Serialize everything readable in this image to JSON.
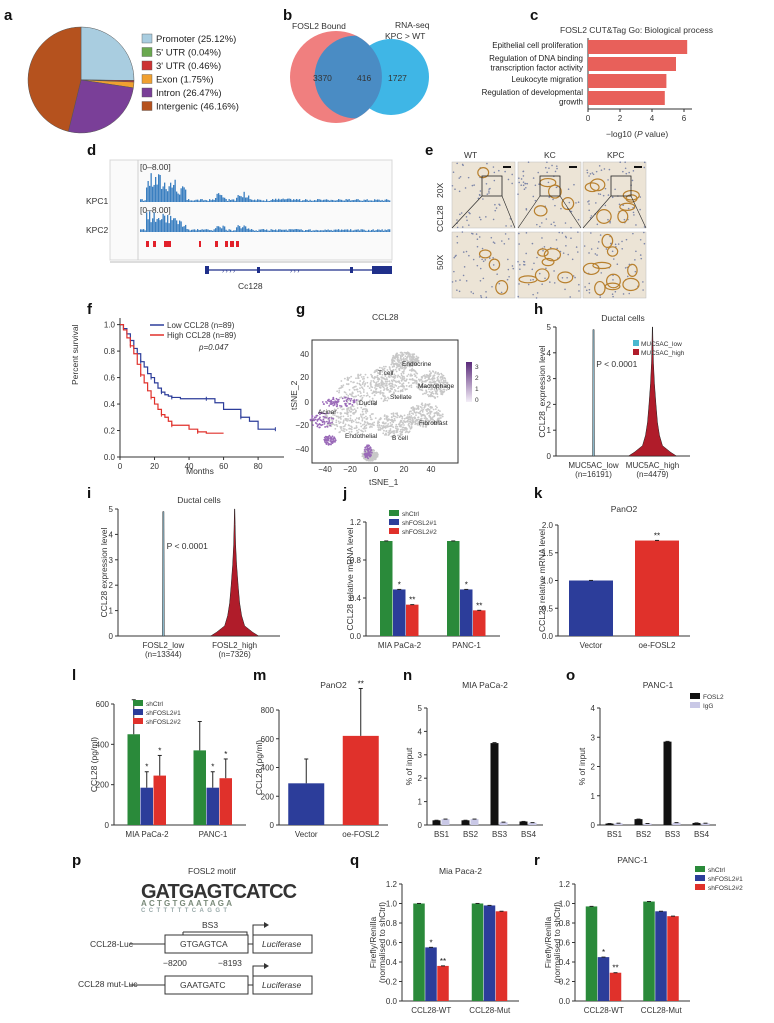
{
  "panel_letters": [
    "a",
    "b",
    "c",
    "d",
    "e",
    "f",
    "g",
    "h",
    "i",
    "j",
    "k",
    "l",
    "m",
    "n",
    "o",
    "p",
    "q",
    "r"
  ],
  "colors": {
    "green": "#2a8a3a",
    "blue": "#2c3d9a",
    "red": "#e0312b",
    "black": "#111111",
    "igg": "#c9c8e6",
    "venn_left": "#f07f7f",
    "venn_right": "#3fb6e6",
    "overlap": "#4a8cc4",
    "track": "#3a7fc0",
    "bed": "#e2202a",
    "violin": "#b01c2a"
  },
  "a": {
    "legend": [
      "Promoter (25.12%)",
      "5' UTR (0.04%)",
      "3' UTR (0.46%)",
      "Exon (1.75%)",
      "Intron (26.47%)",
      "Intergenic (46.16%)"
    ],
    "chart_data": {
      "type": "pie",
      "labels": [
        "Promoter",
        "5' UTR",
        "3' UTR",
        "Exon",
        "Intron",
        "Intergenic"
      ],
      "values": [
        25.12,
        0.04,
        0.46,
        1.75,
        26.47,
        46.16
      ],
      "colors": [
        "#a9cde0",
        "#6aa84f",
        "#cc3333",
        "#f0a030",
        "#7a3f98",
        "#b5521e"
      ]
    }
  },
  "b": {
    "left_label": "FOSL2 Bound",
    "right_label_1": "RNA-seq",
    "right_label_2": "KPC > WT",
    "left_only": "3370",
    "overlap": "416",
    "right_only": "1727"
  },
  "c": {
    "title": "FOSL2 CUT&Tag Go: Biological process",
    "xlabel_pre": "−log10 (",
    "xlabel_italic": "P",
    "xlabel_post": " value)",
    "chart_data": {
      "type": "bar",
      "categories": [
        "Epithelial cell proliferation",
        "Regulation of DNA binding transcription factor activity",
        "Leukocyte migration",
        "Regulation of developmental growth"
      ],
      "values": [
        6.2,
        5.5,
        4.9,
        4.8
      ],
      "xlim": [
        0,
        6.5
      ],
      "xticks": [
        "0",
        "2",
        "4",
        "6"
      ]
    }
  },
  "d": {
    "track1": "KPC1",
    "track2": "KPC2",
    "range1": "[0–8.00]",
    "range2": "[0–8.00]",
    "gene": "Cc128"
  },
  "e": {
    "cols": [
      "WT",
      "KC",
      "KPC"
    ],
    "row_label": "CCL28",
    "rows": [
      "20X",
      "50X"
    ]
  },
  "f": {
    "legend_low": "Low CCL28 (n=89)",
    "legend_high": "High CCL28 (n=89)",
    "pvalue": "p=0.047",
    "ylabel": "Percent survival",
    "xlabel": "Months",
    "chart_data": {
      "type": "line",
      "series": [
        {
          "name": "Low CCL28 (n=89)",
          "color": "#2c3d9a",
          "x": [
            0,
            2,
            4,
            6,
            8,
            10,
            12,
            14,
            16,
            18,
            20,
            22,
            24,
            26,
            28,
            30,
            35,
            40,
            50,
            55,
            60,
            70,
            75,
            80,
            90
          ],
          "y": [
            1.0,
            0.97,
            0.93,
            0.88,
            0.82,
            0.78,
            0.72,
            0.68,
            0.63,
            0.6,
            0.56,
            0.52,
            0.49,
            0.47,
            0.46,
            0.45,
            0.44,
            0.44,
            0.44,
            0.41,
            0.36,
            0.3,
            0.27,
            0.21,
            0.21
          ]
        },
        {
          "name": "High CCL28 (n=89)",
          "color": "#e0312b",
          "x": [
            0,
            2,
            4,
            6,
            8,
            10,
            12,
            14,
            16,
            18,
            20,
            22,
            24,
            26,
            28,
            30,
            35,
            40,
            45,
            50,
            60
          ],
          "y": [
            1.0,
            0.96,
            0.9,
            0.84,
            0.78,
            0.7,
            0.62,
            0.56,
            0.5,
            0.45,
            0.4,
            0.36,
            0.32,
            0.3,
            0.27,
            0.24,
            0.24,
            0.21,
            0.19,
            0.18,
            0.18
          ]
        }
      ],
      "xlim": [
        0,
        95
      ],
      "ylim": [
        0,
        1.05
      ],
      "xticks": [
        "0",
        "20",
        "40",
        "60",
        "80"
      ],
      "yticks": [
        "0.0",
        "0.2",
        "0.4",
        "0.6",
        "0.8",
        "1.0"
      ]
    }
  },
  "g": {
    "title": "CCL28",
    "xlabel": "tSNE_1",
    "ylabel": "tSNE_2",
    "xticks": [
      "−40",
      "−20",
      "0",
      "20",
      "40"
    ],
    "yticks": [
      "40",
      "20",
      "0",
      "−20",
      "−40"
    ],
    "cbar": [
      "3",
      "2",
      "1",
      "0"
    ],
    "clusters": [
      "Endocrine",
      "T cell",
      "Macrophage",
      "Stellate",
      "Ductal",
      "Acinar",
      "Fibroblast",
      "Endothelial",
      "B cell"
    ]
  },
  "h": {
    "title": "Ductal cells",
    "ylabel": "CCL28_expression level",
    "pvalue": "P < 0.0001",
    "legend": [
      "MUC5AC_low",
      "MUC5AC_high"
    ],
    "yticks": [
      "0",
      "1",
      "2",
      "3",
      "4",
      "5"
    ],
    "group1": "MUC5AC_low",
    "group1_n": "(n=16191)",
    "group2": "MUC5AC_high",
    "group2_n": "(n=4479)"
  },
  "i": {
    "title": "Ductal cells",
    "ylabel": "CCL28 expression level",
    "pvalue": "P < 0.0001",
    "yticks": [
      "0",
      "1",
      "2",
      "3",
      "4",
      "5"
    ],
    "group1": "FOSL2_low",
    "group1_n": "(n=13344)",
    "group2": "FOSL2_high",
    "group2_n": "(n=7326)"
  },
  "j": {
    "ylabel": "CCL28 relative mRNA level",
    "legend": [
      "shCtrl",
      "shFOSL2#1",
      "shFOSL2#2"
    ],
    "chart_data": {
      "type": "bar",
      "categories": [
        "MIA PaCa-2",
        "PANC-1"
      ],
      "series": [
        {
          "name": "shCtrl",
          "values": [
            1.0,
            1.0
          ]
        },
        {
          "name": "shFOSL2#1",
          "values": [
            0.49,
            0.49
          ]
        },
        {
          "name": "shFOSL2#2",
          "values": [
            0.33,
            0.27
          ]
        }
      ],
      "ylim": [
        0,
        1.2
      ],
      "yticks": [
        "0.0",
        "0.4",
        "0.8",
        "1.2"
      ],
      "sig": [
        "*",
        "**",
        "*",
        "**"
      ]
    }
  },
  "k": {
    "title": "PanO2",
    "ylabel": "CCL28 relative mRNA level",
    "chart_data": {
      "type": "bar",
      "categories": [
        "Vector",
        "oe-FOSL2"
      ],
      "values": [
        1.0,
        1.72
      ],
      "ylim": [
        0,
        2.0
      ],
      "yticks": [
        "0.0",
        "0.5",
        "1.0",
        "1.5",
        "2.0"
      ],
      "sig": [
        "**"
      ]
    }
  },
  "l": {
    "ylabel": "CCL28 (pg/ml)",
    "legend": [
      "shCtrl",
      "shFOSL2#1",
      "shFOSL2#2"
    ],
    "chart_data": {
      "type": "bar",
      "categories": [
        "MIA PaCa-2",
        "PANC-1"
      ],
      "series": [
        {
          "name": "shCtrl",
          "values": [
            450,
            370
          ]
        },
        {
          "name": "shFOSL2#1",
          "values": [
            185,
            185
          ]
        },
        {
          "name": "shFOSL2#2",
          "values": [
            245,
            232
          ]
        }
      ],
      "ylim": [
        0,
        600
      ],
      "yticks": [
        "0",
        "200",
        "400",
        "600"
      ],
      "sig": [
        "*",
        "*",
        "*",
        "*"
      ]
    }
  },
  "m": {
    "title": "PanO2",
    "ylabel": "CCL28 (pg/ml)",
    "chart_data": {
      "type": "bar",
      "categories": [
        "Vector",
        "oe-FOSL2"
      ],
      "values": [
        290,
        620
      ],
      "ylim": [
        0,
        800
      ],
      "yticks": [
        "0",
        "200",
        "400",
        "600",
        "800"
      ],
      "sig": [
        "**"
      ]
    }
  },
  "n": {
    "title": "MIA PaCa-2",
    "ylabel": "% of input",
    "chart_data": {
      "type": "bar",
      "categories": [
        "BS1",
        "BS2",
        "BS3",
        "BS4"
      ],
      "series": [
        {
          "name": "FOSL2",
          "values": [
            0.2,
            0.2,
            3.5,
            0.15
          ]
        },
        {
          "name": "IgG",
          "values": [
            0.25,
            0.25,
            0.12,
            0.1
          ]
        }
      ],
      "ylim": [
        0,
        5
      ],
      "yticks": [
        "0",
        "1",
        "2",
        "3",
        "4",
        "5"
      ]
    }
  },
  "o": {
    "title": "PANC-1",
    "ylabel": "% of input",
    "legend": [
      "FOSL2",
      "IgG"
    ],
    "chart_data": {
      "type": "bar",
      "categories": [
        "BS1",
        "BS2",
        "BS3",
        "BS4"
      ],
      "series": [
        {
          "name": "FOSL2",
          "values": [
            0.05,
            0.2,
            2.85,
            0.07
          ]
        },
        {
          "name": "IgG",
          "values": [
            0.06,
            0.05,
            0.08,
            0.06
          ]
        }
      ],
      "ylim": [
        0,
        4
      ],
      "yticks": [
        "0",
        "1",
        "2",
        "3",
        "4"
      ]
    }
  },
  "p": {
    "motif_title": "FOSL2 motif",
    "bs": "BS3",
    "wt_label": "CCL28-Luc",
    "wt_seq": "GTGAGTCA",
    "mut_label": "CCL28 mut-Luc",
    "mut_seq": "GAATGATC",
    "luc": "Luciferase",
    "pos1": "−8200",
    "pos2": "−8193",
    "logo_top": "GATGAGTCATCC",
    "logo_mid": "ACTGTGAATAGA",
    "logo_low": "CCTTTTTCAGGT"
  },
  "q": {
    "title": "Mia Paca-2",
    "ylabel": "Firefly/Renilla",
    "ylabel2": "(normalised to shCtrl)",
    "chart_data": {
      "type": "bar",
      "categories": [
        "CCL28-WT",
        "CCL28-Mut"
      ],
      "series": [
        {
          "name": "shCtrl",
          "values": [
            1.0,
            1.0
          ]
        },
        {
          "name": "shFOSL2#1",
          "values": [
            0.55,
            0.98
          ]
        },
        {
          "name": "shFOSL2#2",
          "values": [
            0.36,
            0.92
          ]
        }
      ],
      "ylim": [
        0,
        1.2
      ],
      "yticks": [
        "0.0",
        "0.2",
        "0.4",
        "0.6",
        "0.8",
        "1.0",
        "1.2"
      ],
      "sig": [
        "*",
        "**"
      ]
    }
  },
  "r": {
    "title": "PANC-1",
    "ylabel": "Firefly/Renilla",
    "ylabel2": "(normalised to shCtrl)",
    "legend": [
      "shCtrl",
      "shFOSL2#1",
      "shFOSL2#2"
    ],
    "chart_data": {
      "type": "bar",
      "categories": [
        "CCL28-WT",
        "CCL28-Mut"
      ],
      "series": [
        {
          "name": "shCtrl",
          "values": [
            0.97,
            1.02
          ]
        },
        {
          "name": "shFOSL2#1",
          "values": [
            0.45,
            0.92
          ]
        },
        {
          "name": "shFOSL2#2",
          "values": [
            0.29,
            0.87
          ]
        }
      ],
      "ylim": [
        0,
        1.2
      ],
      "yticks": [
        "0.0",
        "0.2",
        "0.4",
        "0.6",
        "0.8",
        "1.0",
        "1.2"
      ],
      "sig": [
        "*",
        "**"
      ]
    }
  }
}
